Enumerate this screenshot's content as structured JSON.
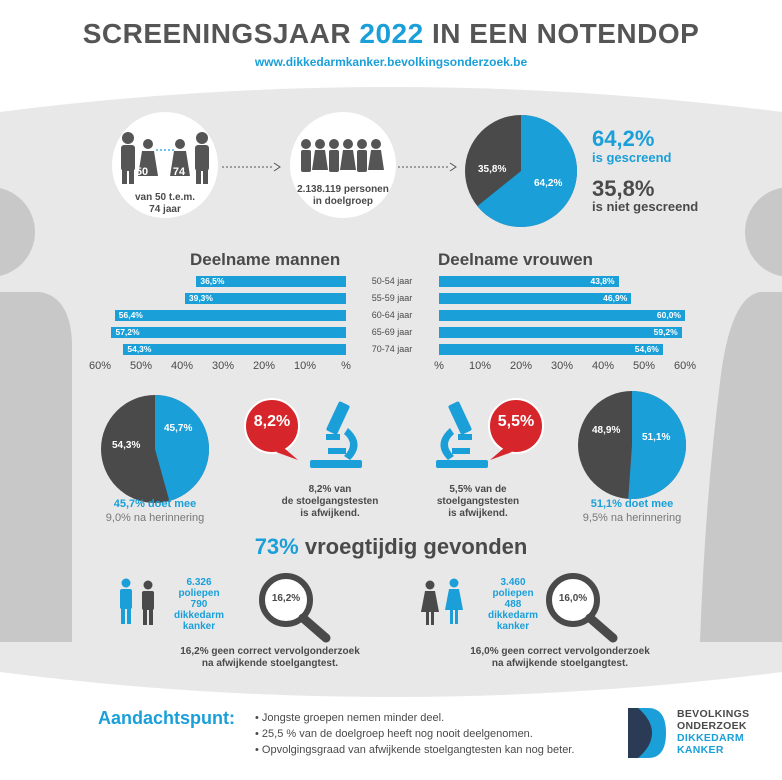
{
  "header": {
    "title_prefix": "SCREENINGSJAAR ",
    "title_year": "2022",
    "title_suffix": " IN EEN NOTENDOP",
    "url": "www.dikkedarmkanker.bevolkingsonderzoek.be"
  },
  "top": {
    "age_from": "50",
    "age_to": "74",
    "age_caption_1": "van 50 t.e.m.",
    "age_caption_2": "74 jaar",
    "target_caption_1": "2.138.119 personen",
    "target_caption_2": "in doelgroep",
    "pie_screened_label": "64,2%",
    "pie_not_label": "35,8%",
    "screened_pct": "64,2%",
    "screened_text": "is gescreend",
    "not_pct": "35,8%",
    "not_text": "is niet gescreend",
    "screened_fraction": 0.642
  },
  "participation": {
    "men_title": "Deelname mannen",
    "women_title": "Deelname vrouwen",
    "age_groups": [
      "50-54 jaar",
      "55-59 jaar",
      "60-64 jaar",
      "65-69 jaar",
      "70-74 jaar"
    ],
    "men": [
      {
        "label": "36,5%",
        "value": 36.5
      },
      {
        "label": "39,3%",
        "value": 39.3
      },
      {
        "label": "56,4%",
        "value": 56.4
      },
      {
        "label": "57,2%",
        "value": 57.2
      },
      {
        "label": "54,3%",
        "value": 54.3
      }
    ],
    "women": [
      {
        "label": "43,8%",
        "value": 43.8
      },
      {
        "label": "46,9%",
        "value": 46.9
      },
      {
        "label": "60,0%",
        "value": 60.0
      },
      {
        "label": "59,2%",
        "value": 59.2
      },
      {
        "label": "54,6%",
        "value": 54.6
      }
    ],
    "men_axis": [
      "60%",
      "50%",
      "40%",
      "30%",
      "20%",
      "10%",
      "%"
    ],
    "women_axis": [
      "%",
      "10%",
      "20%",
      "30%",
      "40%",
      "50%",
      "60%"
    ]
  },
  "men_detail": {
    "pie_blue_label": "45,7%",
    "pie_gray_label": "54,3%",
    "participation_fraction": 0.457,
    "caption_blue": "45,7% doet mee",
    "caption_gray": "9,0% na herinnering",
    "abnormal_pct": "8,2%",
    "abnormal_text_1": "8,2% van",
    "abnormal_text_2": "de stoelgangstesten",
    "abnormal_text_3": "is afwijkend."
  },
  "women_detail": {
    "pie_blue_label": "51,1%",
    "pie_gray_label": "48,9%",
    "participation_fraction": 0.511,
    "caption_blue": "51,1% doet mee",
    "caption_gray": "9,5% na herinnering",
    "abnormal_pct": "5,5%",
    "abnormal_text_1": "5,5% van de",
    "abnormal_text_2": "stoelgangstesten",
    "abnormal_text_3": "is afwijkend."
  },
  "found": {
    "pct": "73%",
    "text": " vroegtijdig gevonden"
  },
  "men_findings": {
    "polyps_count": "6.326",
    "polyps_word": "poliepen",
    "cancer_count": "790",
    "cancer_word_1": "dikkedarm",
    "cancer_word_2": "kanker",
    "no_followup_pct": "16,2%",
    "no_followup_1": "16,2% geen correct vervolgonderzoek",
    "no_followup_2": "na afwijkende stoelgangtest."
  },
  "women_findings": {
    "polyps_count": "3.460",
    "polyps_word": "poliepen",
    "cancer_count": "488",
    "cancer_word_1": "dikkedarm",
    "cancer_word_2": "kanker",
    "no_followup_pct": "16,0%",
    "no_followup_1": "16,0% geen correct vervolgonderzoek",
    "no_followup_2": "na afwijkende stoelgangtest."
  },
  "attention": {
    "title": "Aandachtspunt:",
    "items": [
      "Jongste groepen nemen minder deel.",
      "25,5 % van de doelgroep heeft nog nooit deelgenomen.",
      "Opvolgingsgraad van afwijkende stoelgangtesten kan nog beter."
    ]
  },
  "logo": {
    "line1": "BEVOLKINGS",
    "line2": "ONDERZOEK",
    "line3": "DIKKEDARM",
    "line4": "KANKER"
  },
  "colors": {
    "blue": "#1a9fd9",
    "dark": "#4a4a4a",
    "red": "#d7262b",
    "band": "#e8e8e8",
    "silhouette": "#c8c8c8"
  }
}
